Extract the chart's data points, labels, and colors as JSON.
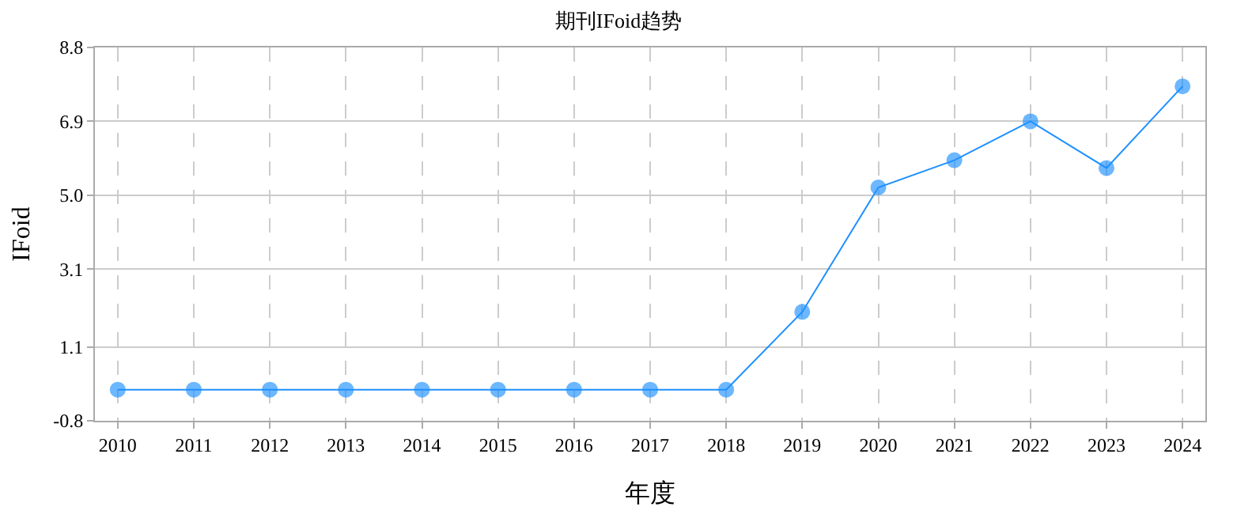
{
  "chart_data": {
    "type": "line",
    "title": "期刊IFoid趋势",
    "xlabel": "年度",
    "ylabel": "IFoid",
    "categories": [
      "2010",
      "2011",
      "2012",
      "2013",
      "2014",
      "2015",
      "2016",
      "2017",
      "2018",
      "2019",
      "2020",
      "2021",
      "2022",
      "2023",
      "2024"
    ],
    "series": [
      {
        "color": "#1e90ff",
        "values": [
          0,
          0,
          0,
          0,
          0,
          0,
          0,
          0,
          0,
          2.0,
          5.2,
          5.9,
          6.9,
          5.7,
          7.8
        ]
      }
    ],
    "ylim": [
      -0.8,
      8.8
    ],
    "yticks": [
      -0.8,
      1.1,
      3.1,
      {
        "value": 5,
        "label": "5.0"
      },
      6.9,
      8.8
    ],
    "grid": true,
    "marker": "circle",
    "line_style": "solid"
  }
}
